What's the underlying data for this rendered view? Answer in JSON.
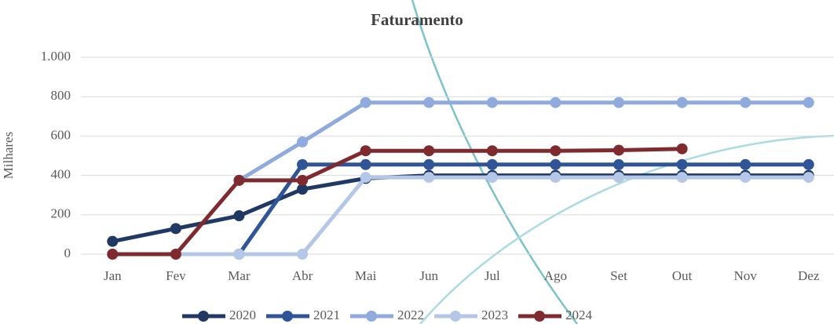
{
  "chart_data": {
    "type": "line",
    "title": "Faturamento",
    "y_label": "Milhares",
    "categories": [
      "Jan",
      "Fev",
      "Mar",
      "Abr",
      "Mai",
      "Jun",
      "Jul",
      "Ago",
      "Set",
      "Out",
      "Nov",
      "Dez"
    ],
    "series": [
      {
        "name": "2020",
        "color": "#203864",
        "values": [
          65,
          130,
          195,
          330,
          385,
          400,
          400,
          400,
          400,
          400,
          400,
          400
        ]
      },
      {
        "name": "2021",
        "color": "#2f5597",
        "values": [
          null,
          null,
          0,
          455,
          455,
          455,
          455,
          455,
          455,
          455,
          455,
          455
        ]
      },
      {
        "name": "2022",
        "color": "#8faadc",
        "values": [
          null,
          null,
          375,
          570,
          770,
          770,
          770,
          770,
          770,
          770,
          770,
          770
        ]
      },
      {
        "name": "2023",
        "color": "#b4c7e7",
        "values": [
          0,
          0,
          0,
          0,
          390,
          390,
          390,
          390,
          390,
          390,
          390,
          390
        ]
      },
      {
        "name": "2024",
        "color": "#7f2a2e",
        "values": [
          0,
          0,
          375,
          375,
          525,
          525,
          525,
          525,
          528,
          535,
          null,
          null
        ]
      }
    ],
    "ylim": [
      0,
      1000
    ],
    "yticks": [
      0,
      200,
      400,
      600,
      800,
      {
        "value": 1000,
        "label": "1.000"
      }
    ],
    "grid": true
  }
}
